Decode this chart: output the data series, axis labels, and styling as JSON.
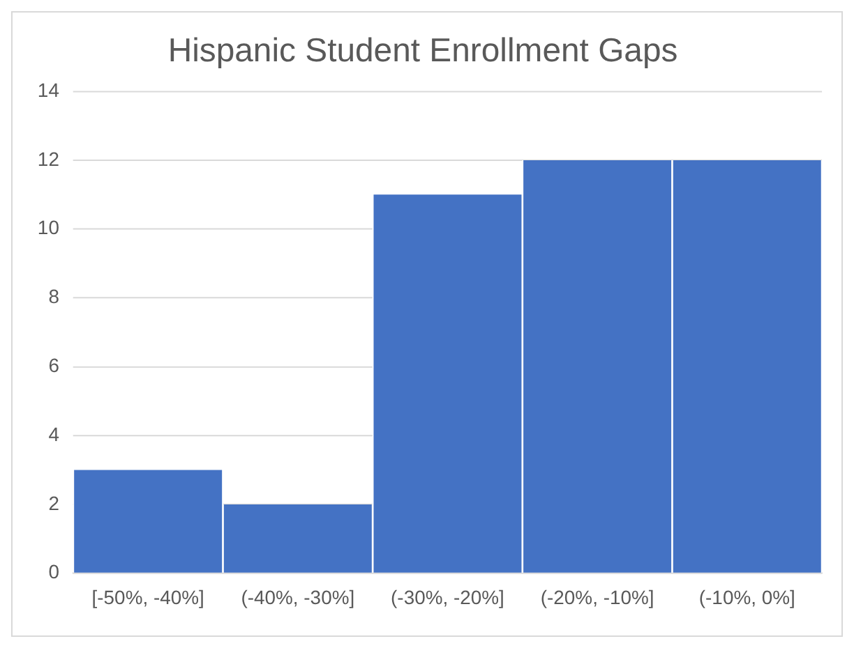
{
  "chart_data": {
    "type": "bar",
    "title": "Hispanic Student Enrollment Gaps",
    "categories": [
      "[-50%, -40%]",
      "(-40%, -30%]",
      "(-30%, -20%]",
      "(-20%, -10%]",
      "(-10%, 0%]"
    ],
    "values": [
      3,
      2,
      11,
      12,
      12
    ],
    "color": "#4472c4",
    "ylim": [
      0,
      14
    ],
    "yticks": [
      0,
      2,
      4,
      6,
      8,
      10,
      12,
      14
    ],
    "grid": "y",
    "legend": false
  }
}
